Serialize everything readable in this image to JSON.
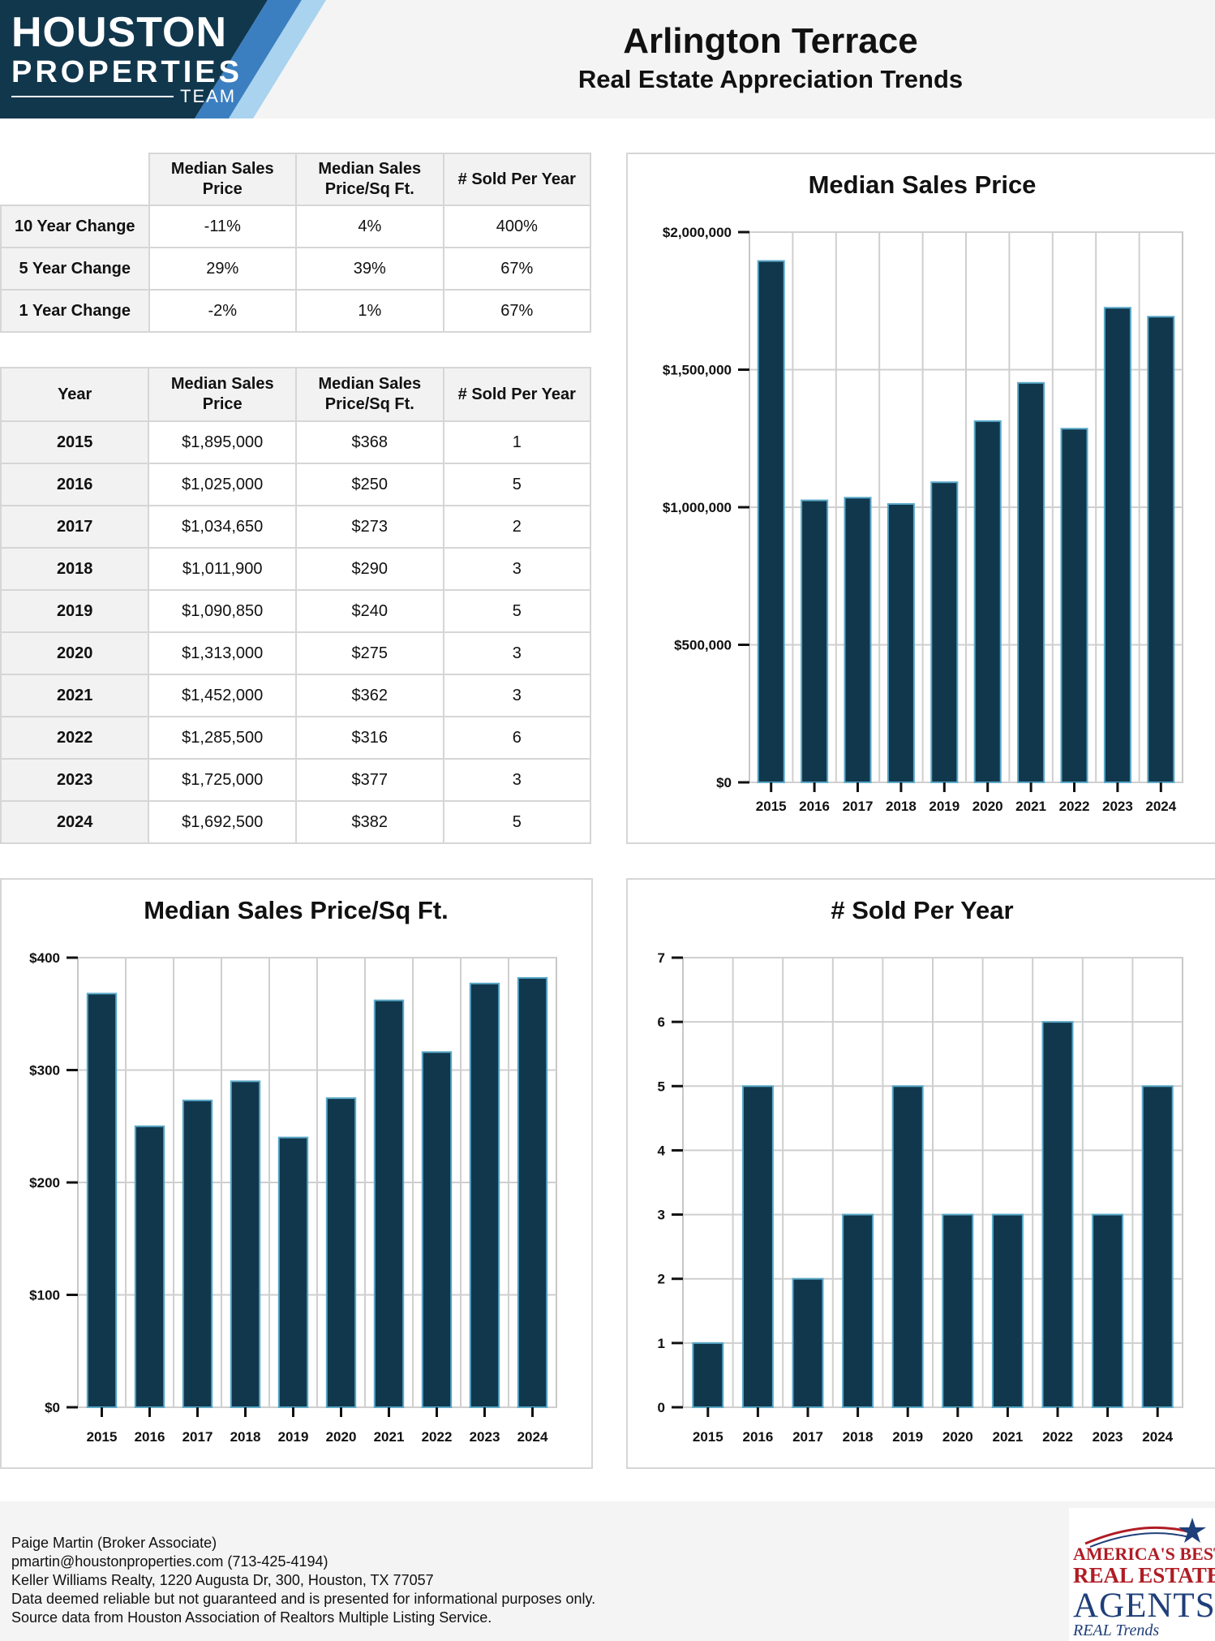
{
  "logo": {
    "line1": "HOUSTON",
    "line2": "PROPERTIES",
    "line3": "TEAM"
  },
  "header": {
    "title": "Arlington Terrace",
    "subtitle": "Real Estate Appreciation Trends"
  },
  "change_table": {
    "headers": [
      "Median Sales Price",
      "Median Sales Price/Sq Ft.",
      "# Sold Per Year"
    ],
    "rows": [
      {
        "label": "10 Year Change",
        "values": [
          "-11%",
          "4%",
          "400%"
        ]
      },
      {
        "label": "5 Year Change",
        "values": [
          "29%",
          "39%",
          "67%"
        ]
      },
      {
        "label": "1 Year Change",
        "values": [
          "-2%",
          "1%",
          "67%"
        ]
      }
    ]
  },
  "year_table": {
    "headers": [
      "Year",
      "Median Sales Price",
      "Median Sales Price/Sq Ft.",
      "# Sold Per Year"
    ],
    "rows": [
      [
        "2015",
        "$1,895,000",
        "$368",
        "1"
      ],
      [
        "2016",
        "$1,025,000",
        "$250",
        "5"
      ],
      [
        "2017",
        "$1,034,650",
        "$273",
        "2"
      ],
      [
        "2018",
        "$1,011,900",
        "$290",
        "3"
      ],
      [
        "2019",
        "$1,090,850",
        "$240",
        "5"
      ],
      [
        "2020",
        "$1,313,000",
        "$275",
        "3"
      ],
      [
        "2021",
        "$1,452,000",
        "$362",
        "3"
      ],
      [
        "2022",
        "$1,285,500",
        "$316",
        "6"
      ],
      [
        "2023",
        "$1,725,000",
        "$377",
        "3"
      ],
      [
        "2024",
        "$1,692,500",
        "$382",
        "5"
      ]
    ]
  },
  "chart_data": [
    {
      "id": "price",
      "type": "bar",
      "title": "Median Sales Price",
      "categories": [
        "2015",
        "2016",
        "2017",
        "2018",
        "2019",
        "2020",
        "2021",
        "2022",
        "2023",
        "2024"
      ],
      "values": [
        1895000,
        1025000,
        1034650,
        1011900,
        1090850,
        1313000,
        1452000,
        1285500,
        1725000,
        1692500
      ],
      "ylim": [
        0,
        2000000
      ],
      "yticks": [
        0,
        500000,
        1000000,
        1500000,
        2000000
      ],
      "ytick_labels": [
        "$0",
        "$500,000",
        "$1,000,000",
        "$1,500,000",
        "$2,000,000"
      ],
      "grid": true,
      "bar_color": "#11374d",
      "bar_edge_color": "#5aa9c8"
    },
    {
      "id": "sqft",
      "type": "bar",
      "title": "Median Sales Price/Sq Ft.",
      "categories": [
        "2015",
        "2016",
        "2017",
        "2018",
        "2019",
        "2020",
        "2021",
        "2022",
        "2023",
        "2024"
      ],
      "values": [
        368,
        250,
        273,
        290,
        240,
        275,
        362,
        316,
        377,
        382
      ],
      "ylim": [
        0,
        400
      ],
      "yticks": [
        0,
        100,
        200,
        300,
        400
      ],
      "ytick_labels": [
        "$0",
        "$100",
        "$200",
        "$300",
        "$400"
      ],
      "grid": true,
      "bar_color": "#11374d",
      "bar_edge_color": "#5aa9c8"
    },
    {
      "id": "sold",
      "type": "bar",
      "title": "# Sold Per Year",
      "categories": [
        "2015",
        "2016",
        "2017",
        "2018",
        "2019",
        "2020",
        "2021",
        "2022",
        "2023",
        "2024"
      ],
      "values": [
        1,
        5,
        2,
        3,
        5,
        3,
        3,
        6,
        3,
        5
      ],
      "ylim": [
        0,
        7
      ],
      "yticks": [
        0,
        1,
        2,
        3,
        4,
        5,
        6,
        7
      ],
      "ytick_labels": [
        "0",
        "1",
        "2",
        "3",
        "4",
        "5",
        "6",
        "7"
      ],
      "grid": true,
      "bar_color": "#11374d",
      "bar_edge_color": "#5aa9c8"
    }
  ],
  "footer": {
    "lines": [
      "Paige Martin (Broker Associate)",
      "pmartin@houstonproperties.com (713-425-4194)",
      "Keller Williams Realty, 1220 Augusta Dr, 300, Houston, TX 77057",
      "Data deemed reliable but not guaranteed and is presented for informational purposes only.",
      "Source data from Houston Association of Realtors Multiple Listing Service."
    ],
    "badge": {
      "line1": "AMERICA'S BEST",
      "line2": "REAL ESTATE",
      "line3": "AGENTS",
      "line4": "REAL Trends"
    }
  }
}
